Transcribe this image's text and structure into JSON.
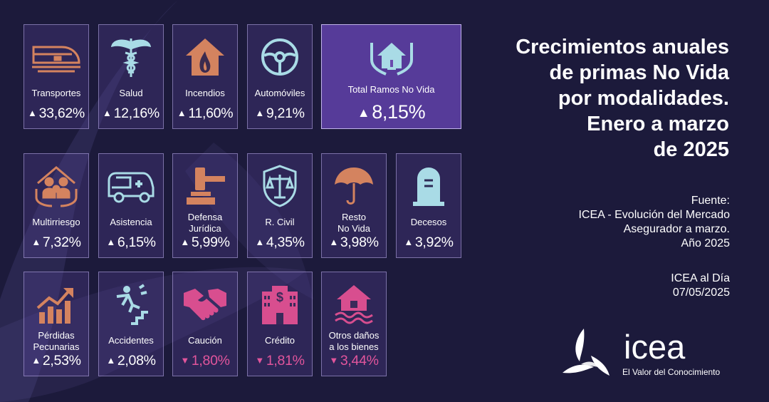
{
  "title_lines": [
    "Crecimientos anuales",
    "de primas No Vida",
    "por modalidades.",
    "Enero a marzo",
    "de 2025"
  ],
  "source_lines": [
    "Fuente:",
    "ICEA - Evolución del Mercado",
    "Asegurador a marzo.",
    "Año 2025"
  ],
  "publication": {
    "name": "ICEA al Día",
    "date": "07/05/2025"
  },
  "brand": {
    "name": "icea",
    "tagline": "El Valor del Conocimiento"
  },
  "colors": {
    "background": "#1c1a3b",
    "positive": "#ffffff",
    "negative": "#e2559c",
    "icon_orange": "#d4835f",
    "icon_blue": "#a9dbe6",
    "icon_pink": "#d84e8f"
  },
  "cards": [
    {
      "label": [
        "Transportes"
      ],
      "arrow": "▲",
      "value": "33,62%",
      "trend": "up",
      "icon": "train-icon"
    },
    {
      "label": [
        "Salud"
      ],
      "arrow": "▲",
      "value": "12,16%",
      "trend": "up",
      "icon": "caduceus-icon"
    },
    {
      "label": [
        "Incendios"
      ],
      "arrow": "▲",
      "value": "11,60%",
      "trend": "up",
      "icon": "house-fire-icon"
    },
    {
      "label": [
        "Automóviles"
      ],
      "arrow": "▲",
      "value": "9,21%",
      "trend": "up",
      "icon": "steering-wheel-icon"
    },
    {
      "label": [
        "Total Ramos No Vida"
      ],
      "arrow": "▲",
      "value": "8,15%",
      "trend": "up",
      "icon": "house-hands-icon",
      "highlight": true
    },
    {
      "label": [
        "Multirriesgo"
      ],
      "arrow": "▲",
      "value": "7,32%",
      "trend": "up",
      "icon": "family-shelter-icon"
    },
    {
      "label": [
        "Asistencia"
      ],
      "arrow": "▲",
      "value": "6,15%",
      "trend": "up",
      "icon": "ambulance-icon"
    },
    {
      "label": [
        "Defensa",
        "Jurídica"
      ],
      "arrow": "▲",
      "value": "5,99%",
      "trend": "up",
      "icon": "gavel-icon"
    },
    {
      "label": [
        "R. Civil"
      ],
      "arrow": "▲",
      "value": "4,35%",
      "trend": "up",
      "icon": "scales-shield-icon"
    },
    {
      "label": [
        "Resto",
        "No Vida"
      ],
      "arrow": "▲",
      "value": "3,98%",
      "trend": "up",
      "icon": "umbrella-icon"
    },
    {
      "label": [
        "Decesos"
      ],
      "arrow": "▲",
      "value": "3,92%",
      "trend": "up",
      "icon": "tombstone-icon"
    },
    {
      "label": [
        "Pérdidas",
        "Pecunarias"
      ],
      "arrow": "▲",
      "value": "2,53%",
      "trend": "up",
      "icon": "growth-chart-icon"
    },
    {
      "label": [
        "Accidentes"
      ],
      "arrow": "▲",
      "value": "2,08%",
      "trend": "up",
      "icon": "falling-person-icon"
    },
    {
      "label": [
        "Caución"
      ],
      "arrow": "▼",
      "value": "1,80%",
      "trend": "down",
      "icon": "handshake-icon"
    },
    {
      "label": [
        "Crédito"
      ],
      "arrow": "▼",
      "value": "1,81%",
      "trend": "down",
      "icon": "bank-building-icon"
    },
    {
      "label": [
        "Otros daños",
        "a los bienes"
      ],
      "arrow": "▼",
      "value": "3,44%",
      "trend": "down",
      "icon": "flooded-house-icon"
    }
  ]
}
